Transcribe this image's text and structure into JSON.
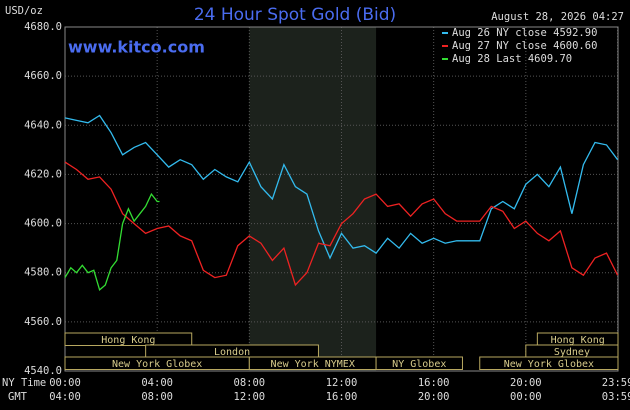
{
  "chart_data": {
    "type": "line",
    "title": "24 Hour Spot Gold (Bid)",
    "watermark": "www.kitco.com",
    "y_axis_label": "USD/oz",
    "timestamp": "August 28, 2026 04:27",
    "x_axis_label": "NY Time",
    "x2_axis_label": "GMT",
    "xlim": [
      0,
      24
    ],
    "ylim": [
      4540,
      4680
    ],
    "xticks": [
      {
        "value": 0,
        "label": "00:00"
      },
      {
        "value": 4,
        "label": "04:00"
      },
      {
        "value": 8,
        "label": "08:00"
      },
      {
        "value": 12,
        "label": "12:00"
      },
      {
        "value": 16,
        "label": "16:00"
      },
      {
        "value": 20,
        "label": "20:00"
      },
      {
        "value": 23.983,
        "label": "23:59"
      }
    ],
    "x2ticks": [
      "04:00",
      "08:00",
      "12:00",
      "16:00",
      "20:00",
      "00:00",
      "03:59"
    ],
    "yticks": [
      {
        "value": 4540,
        "label": "4540.0"
      },
      {
        "value": 4560,
        "label": "4560.0"
      },
      {
        "value": 4580,
        "label": "4580.0"
      },
      {
        "value": 4600,
        "label": "4600.0"
      },
      {
        "value": 4620,
        "label": "4620.0"
      },
      {
        "value": 4640,
        "label": "4640.0"
      },
      {
        "value": 4660,
        "label": "4660.0"
      },
      {
        "value": 4680,
        "label": "4680.0"
      }
    ],
    "grid": true,
    "legend": "top-right",
    "series": [
      {
        "name": "Aug 26 NY close 4592.90",
        "color": "#33bbee",
        "x": [
          0,
          0.5,
          1,
          1.5,
          2,
          2.5,
          3,
          3.5,
          4,
          4.5,
          5,
          5.5,
          6,
          6.5,
          7,
          7.5,
          8,
          8.5,
          9,
          9.5,
          10,
          10.5,
          11,
          11.5,
          12,
          12.5,
          13,
          13.5,
          14,
          14.5,
          15,
          15.5,
          16,
          16.5,
          17,
          17.5,
          18,
          18.5,
          19,
          19.5,
          20,
          20.5,
          21,
          21.5,
          22,
          22.5,
          23,
          23.5,
          23.983
        ],
        "values": [
          4643,
          4642,
          4641,
          4644,
          4637,
          4628,
          4631,
          4633,
          4628,
          4623,
          4626,
          4624,
          4618,
          4622,
          4619,
          4617,
          4625,
          4615,
          4610,
          4624,
          4615,
          4612,
          4597,
          4586,
          4596,
          4590,
          4591,
          4588,
          4594,
          4590,
          4596,
          4592,
          4594,
          4592,
          4593,
          4593,
          4593,
          4606,
          4609,
          4606,
          4616,
          4620,
          4615,
          4623,
          4604,
          4624,
          4633,
          4632,
          4626
        ]
      },
      {
        "name": "Aug 27 NY close 4600.60",
        "color": "#ee2222",
        "x": [
          0,
          0.5,
          1,
          1.5,
          2,
          2.5,
          3,
          3.5,
          4,
          4.5,
          5,
          5.5,
          6,
          6.5,
          7,
          7.5,
          8,
          8.5,
          9,
          9.5,
          10,
          10.5,
          11,
          11.5,
          12,
          12.5,
          13,
          13.5,
          14,
          14.5,
          15,
          15.5,
          16,
          16.5,
          17,
          17.5,
          18,
          18.5,
          19,
          19.5,
          20,
          20.5,
          21,
          21.5,
          22,
          22.5,
          23,
          23.5,
          23.983
        ],
        "values": [
          4625,
          4622,
          4618,
          4619,
          4614,
          4604,
          4600,
          4596,
          4598,
          4599,
          4595,
          4593,
          4581,
          4578,
          4579,
          4591,
          4595,
          4592,
          4585,
          4590,
          4575,
          4580,
          4592,
          4591,
          4600,
          4604,
          4610,
          4612,
          4607,
          4608,
          4603,
          4608,
          4610,
          4604,
          4601,
          4601,
          4601,
          4607,
          4605,
          4598,
          4601,
          4596,
          4593,
          4597,
          4582,
          4579,
          4586,
          4588,
          4579
        ]
      },
      {
        "name": "Aug 28 Last 4609.70",
        "color": "#33dd33",
        "x": [
          0,
          0.25,
          0.5,
          0.75,
          1,
          1.25,
          1.5,
          1.75,
          2,
          2.25,
          2.5,
          2.75,
          3,
          3.25,
          3.5,
          3.75,
          4,
          4.1
        ],
        "values": [
          4578,
          4582,
          4580,
          4583,
          4580,
          4581,
          4573,
          4575,
          4582,
          4585,
          4600,
          4606,
          4601,
          4604,
          4607,
          4612,
          4609,
          4609
        ]
      }
    ],
    "sessions": [
      {
        "label": "Hong Kong",
        "start": 0,
        "end": 5.5,
        "row": 0
      },
      {
        "label": "Hong Kong",
        "start": 20.5,
        "end": 24,
        "row": 0
      },
      {
        "label": "London",
        "start": 3.5,
        "end": 11,
        "row": 1
      },
      {
        "label": "Sydney",
        "start": 20,
        "end": 24,
        "row": 1
      },
      {
        "label": "New York Globex",
        "start": 0,
        "end": 8,
        "row": 2
      },
      {
        "label": "New York NYMEX",
        "start": 8,
        "end": 13.5,
        "row": 2,
        "highlight": true
      },
      {
        "label": "NY Globex",
        "start": 13.5,
        "end": 17.25,
        "row": 2
      },
      {
        "label": "New York Globex",
        "start": 18,
        "end": 24,
        "row": 2
      }
    ]
  }
}
